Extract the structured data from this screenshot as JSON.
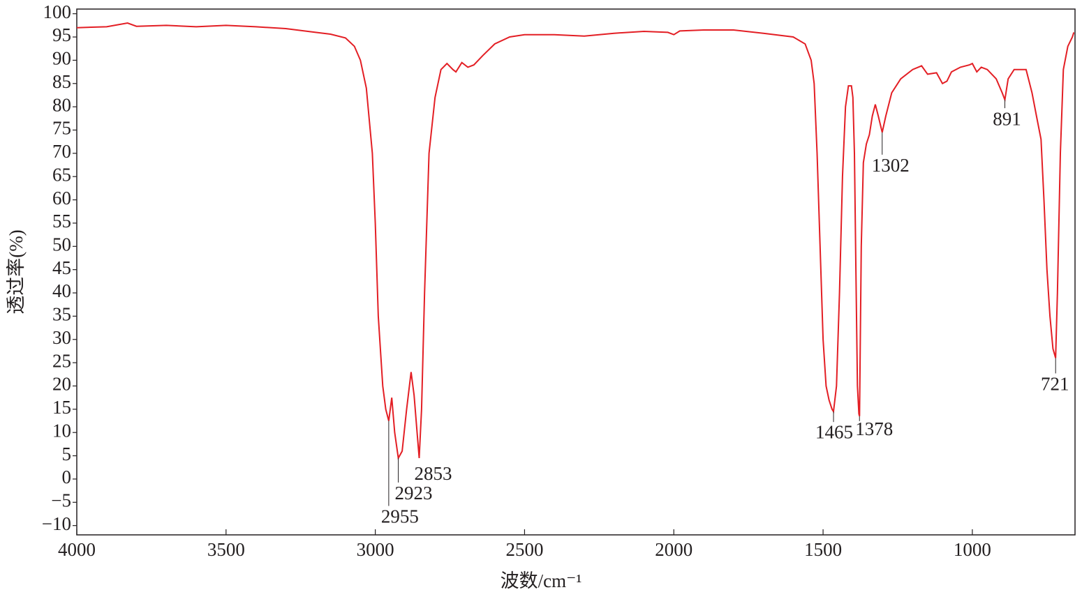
{
  "chart_data": {
    "type": "line",
    "xlabel": "波数/cm⁻¹",
    "ylabel": "透过率(%)",
    "x": [
      4000,
      3900,
      3830,
      3800,
      3700,
      3600,
      3500,
      3400,
      3300,
      3200,
      3150,
      3100,
      3070,
      3050,
      3030,
      3010,
      3000,
      2990,
      2975,
      2965,
      2955,
      2945,
      2935,
      2923,
      2910,
      2895,
      2880,
      2870,
      2860,
      2853,
      2845,
      2835,
      2820,
      2800,
      2780,
      2760,
      2740,
      2730,
      2710,
      2690,
      2670,
      2640,
      2600,
      2550,
      2500,
      2400,
      2300,
      2200,
      2100,
      2020,
      2000,
      1980,
      1900,
      1800,
      1700,
      1600,
      1560,
      1540,
      1530,
      1520,
      1510,
      1500,
      1490,
      1480,
      1470,
      1465,
      1455,
      1445,
      1435,
      1425,
      1415,
      1405,
      1400,
      1395,
      1390,
      1385,
      1380,
      1378,
      1372,
      1365,
      1355,
      1345,
      1335,
      1325,
      1315,
      1302,
      1290,
      1270,
      1240,
      1200,
      1170,
      1150,
      1120,
      1100,
      1085,
      1070,
      1040,
      1010,
      1000,
      985,
      970,
      950,
      920,
      900,
      891,
      880,
      860,
      820,
      800,
      785,
      770,
      760,
      750,
      740,
      730,
      721,
      715,
      705,
      695,
      680,
      665,
      660
    ],
    "series": [
      {
        "color": "#e31e24",
        "values": [
          97,
          97.2,
          98,
          97.3,
          97.5,
          97.2,
          97.5,
          97.2,
          96.8,
          96,
          95.6,
          94.8,
          93,
          90,
          84,
          70,
          55,
          35,
          20,
          15,
          12.5,
          17.5,
          10,
          4.5,
          6,
          15,
          23,
          18,
          10,
          4.5,
          15,
          40,
          70,
          82,
          88,
          89.3,
          88,
          87.5,
          89.5,
          88.5,
          89,
          91,
          93.5,
          95,
          95.5,
          95.5,
          95.2,
          95.8,
          96.2,
          96,
          95.5,
          96.3,
          96.5,
          96.5,
          95.8,
          95,
          93.5,
          90,
          85,
          70,
          50,
          30,
          20,
          17,
          15,
          14.5,
          20,
          40,
          65,
          80,
          84.5,
          84.5,
          82,
          70,
          45,
          20,
          14,
          13.5,
          50,
          68,
          72,
          74,
          78,
          80.5,
          78,
          74.5,
          78,
          83,
          86,
          88,
          88.8,
          87,
          87.3,
          85,
          85.5,
          87.5,
          88.5,
          89,
          89.3,
          87.5,
          88.5,
          88,
          86,
          83,
          81.5,
          86,
          88,
          88,
          83,
          78,
          73,
          60,
          45,
          35,
          28,
          26,
          40,
          70,
          88,
          93,
          95,
          96
        ]
      }
    ],
    "annotations": [
      "2955",
      "2923",
      "2853",
      "1465",
      "1378",
      "1302",
      "891",
      "721"
    ],
    "xlim": [
      4000,
      656
    ],
    "xticks": [
      4000,
      3500,
      3000,
      2500,
      2000,
      1500,
      1000
    ],
    "ylim": [
      -12,
      101
    ],
    "yticks": [
      {
        "value": -10,
        "label": "−10"
      },
      {
        "value": -5,
        "label": "−5"
      },
      0,
      5,
      10,
      15,
      20,
      25,
      30,
      35,
      40,
      45,
      50,
      55,
      60,
      65,
      70,
      75,
      80,
      85,
      90,
      95,
      100
    ]
  }
}
